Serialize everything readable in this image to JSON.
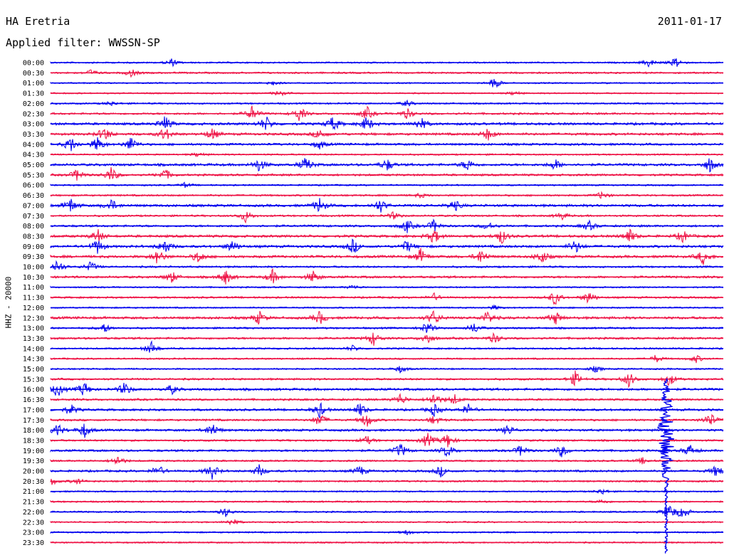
{
  "header": {
    "station": "HA Eretria",
    "date": "2011-01-17",
    "filter": "Applied filter: WWSSN-SP"
  },
  "channel_label": "HHZ - 20000",
  "colors": {
    "blue": "#0000ee",
    "red": "#ee1144"
  },
  "chart_data": {
    "type": "line",
    "title": "HA Eretria",
    "subtitle": "Applied filter: WWSSN-SP",
    "ylabel": "HHZ - 20000",
    "row_interval_minutes": 30,
    "series": [
      {
        "label": "00:00",
        "color": "blue",
        "activity": 0.15,
        "events": [
          [
            0.18,
            0.5
          ],
          [
            0.89,
            0.6
          ],
          [
            0.93,
            0.7
          ]
        ]
      },
      {
        "label": "00:30",
        "color": "red",
        "activity": 0.25,
        "events": [
          [
            0.06,
            0.4
          ],
          [
            0.12,
            0.5
          ]
        ]
      },
      {
        "label": "01:00",
        "color": "blue",
        "activity": 0.12,
        "events": [
          [
            0.66,
            0.7
          ],
          [
            0.33,
            0.3
          ]
        ]
      },
      {
        "label": "01:30",
        "color": "red",
        "activity": 0.12,
        "events": [
          [
            0.34,
            0.4
          ],
          [
            0.69,
            0.3
          ]
        ]
      },
      {
        "label": "02:00",
        "color": "blue",
        "activity": 0.2,
        "events": [
          [
            0.09,
            0.3
          ],
          [
            0.53,
            0.4
          ]
        ]
      },
      {
        "label": "02:30",
        "color": "red",
        "activity": 0.35,
        "events": [
          [
            0.3,
            1.0
          ],
          [
            0.37,
            1.0
          ],
          [
            0.47,
            0.9
          ],
          [
            0.53,
            0.7
          ]
        ]
      },
      {
        "label": "03:00",
        "color": "blue",
        "activity": 0.55,
        "events": [
          [
            0.17,
            1.0
          ],
          [
            0.32,
            1.0
          ],
          [
            0.42,
            1.0
          ],
          [
            0.47,
            1.0
          ],
          [
            0.55,
            0.9
          ]
        ]
      },
      {
        "label": "03:30",
        "color": "red",
        "activity": 0.5,
        "events": [
          [
            0.08,
            1.0
          ],
          [
            0.17,
            1.0
          ],
          [
            0.24,
            0.8
          ],
          [
            0.4,
            0.7
          ],
          [
            0.65,
            0.8
          ]
        ]
      },
      {
        "label": "04:00",
        "color": "blue",
        "activity": 0.45,
        "events": [
          [
            0.03,
            1.0
          ],
          [
            0.07,
            1.0
          ],
          [
            0.12,
            1.0
          ],
          [
            0.4,
            0.6
          ]
        ]
      },
      {
        "label": "04:30",
        "color": "red",
        "activity": 0.18,
        "events": [
          [
            0.22,
            0.3
          ]
        ]
      },
      {
        "label": "05:00",
        "color": "blue",
        "activity": 0.55,
        "events": [
          [
            0.31,
            0.9
          ],
          [
            0.38,
            1.0
          ],
          [
            0.5,
            0.8
          ],
          [
            0.62,
            0.8
          ],
          [
            0.75,
            0.7
          ],
          [
            0.98,
            1.0
          ]
        ]
      },
      {
        "label": "05:30",
        "color": "red",
        "activity": 0.4,
        "events": [
          [
            0.04,
            0.8
          ],
          [
            0.09,
            1.0
          ],
          [
            0.17,
            0.8
          ]
        ]
      },
      {
        "label": "06:00",
        "color": "blue",
        "activity": 0.18,
        "events": [
          [
            0.2,
            0.3
          ]
        ]
      },
      {
        "label": "06:30",
        "color": "red",
        "activity": 0.25,
        "events": [
          [
            0.82,
            0.5
          ],
          [
            0.55,
            0.3
          ]
        ]
      },
      {
        "label": "07:00",
        "color": "blue",
        "activity": 0.55,
        "events": [
          [
            0.03,
            1.0
          ],
          [
            0.09,
            0.8
          ],
          [
            0.4,
            1.0
          ],
          [
            0.49,
            0.9
          ],
          [
            0.6,
            0.8
          ]
        ]
      },
      {
        "label": "07:30",
        "color": "red",
        "activity": 0.3,
        "events": [
          [
            0.29,
            0.8
          ],
          [
            0.51,
            0.5
          ],
          [
            0.76,
            0.5
          ]
        ]
      },
      {
        "label": "08:00",
        "color": "blue",
        "activity": 0.4,
        "events": [
          [
            0.53,
            0.9
          ],
          [
            0.57,
            0.8
          ],
          [
            0.65,
            0.6
          ],
          [
            0.8,
            0.7
          ]
        ]
      },
      {
        "label": "08:30",
        "color": "red",
        "activity": 0.55,
        "events": [
          [
            0.07,
            0.9
          ],
          [
            0.57,
            1.0
          ],
          [
            0.67,
            1.0
          ],
          [
            0.86,
            1.0
          ],
          [
            0.94,
            0.8
          ]
        ]
      },
      {
        "label": "09:00",
        "color": "blue",
        "activity": 0.55,
        "events": [
          [
            0.07,
            1.0
          ],
          [
            0.17,
            1.0
          ],
          [
            0.27,
            0.8
          ],
          [
            0.45,
            1.0
          ],
          [
            0.53,
            0.8
          ],
          [
            0.78,
            0.9
          ]
        ]
      },
      {
        "label": "09:30",
        "color": "red",
        "activity": 0.55,
        "events": [
          [
            0.16,
            1.0
          ],
          [
            0.22,
            0.8
          ],
          [
            0.55,
            1.0
          ],
          [
            0.64,
            1.0
          ],
          [
            0.73,
            0.9
          ],
          [
            0.97,
            1.0
          ]
        ]
      },
      {
        "label": "10:00",
        "color": "blue",
        "activity": 0.3,
        "events": [
          [
            0.01,
            1.0
          ],
          [
            0.06,
            0.7
          ]
        ]
      },
      {
        "label": "10:30",
        "color": "red",
        "activity": 0.45,
        "events": [
          [
            0.18,
            0.8
          ],
          [
            0.26,
            1.0
          ],
          [
            0.33,
            0.9
          ],
          [
            0.39,
            0.8
          ]
        ]
      },
      {
        "label": "11:00",
        "color": "blue",
        "activity": 0.15,
        "events": [
          [
            0.45,
            0.3
          ]
        ]
      },
      {
        "label": "11:30",
        "color": "red",
        "activity": 0.3,
        "events": [
          [
            0.57,
            0.5
          ],
          [
            0.75,
            1.0
          ],
          [
            0.8,
            0.9
          ]
        ]
      },
      {
        "label": "12:00",
        "color": "blue",
        "activity": 0.15,
        "events": [
          [
            0.66,
            0.3
          ]
        ]
      },
      {
        "label": "12:30",
        "color": "red",
        "activity": 0.55,
        "events": [
          [
            0.31,
            0.9
          ],
          [
            0.4,
            0.9
          ],
          [
            0.57,
            1.0
          ],
          [
            0.65,
            0.9
          ],
          [
            0.75,
            0.9
          ]
        ]
      },
      {
        "label": "13:00",
        "color": "blue",
        "activity": 0.3,
        "events": [
          [
            0.08,
            0.6
          ],
          [
            0.56,
            0.9
          ],
          [
            0.63,
            0.7
          ]
        ]
      },
      {
        "label": "13:30",
        "color": "red",
        "activity": 0.4,
        "events": [
          [
            0.48,
            0.9
          ],
          [
            0.56,
            0.8
          ],
          [
            0.66,
            0.7
          ]
        ]
      },
      {
        "label": "14:00",
        "color": "blue",
        "activity": 0.25,
        "events": [
          [
            0.15,
            0.9
          ],
          [
            0.45,
            0.4
          ]
        ]
      },
      {
        "label": "14:30",
        "color": "red",
        "activity": 0.2,
        "events": [
          [
            0.9,
            0.5
          ],
          [
            0.96,
            0.5
          ]
        ]
      },
      {
        "label": "15:00",
        "color": "blue",
        "activity": 0.18,
        "events": [
          [
            0.52,
            0.5
          ],
          [
            0.81,
            0.4
          ]
        ]
      },
      {
        "label": "15:30",
        "color": "red",
        "activity": 0.35,
        "events": [
          [
            0.78,
            1.0
          ],
          [
            0.86,
            1.0
          ],
          [
            0.92,
            0.9
          ]
        ]
      },
      {
        "label": "16:00",
        "color": "blue",
        "activity": 0.5,
        "events": [
          [
            0.01,
            1.0
          ],
          [
            0.05,
            1.0
          ],
          [
            0.11,
            0.9
          ],
          [
            0.18,
            0.6
          ]
        ]
      },
      {
        "label": "16:30",
        "color": "red",
        "activity": 0.35,
        "events": [
          [
            0.52,
            0.8
          ],
          [
            0.57,
            0.9
          ],
          [
            0.6,
            0.7
          ]
        ]
      },
      {
        "label": "17:00",
        "color": "blue",
        "activity": 0.45,
        "events": [
          [
            0.03,
            0.7
          ],
          [
            0.4,
            1.0
          ],
          [
            0.46,
            0.9
          ],
          [
            0.57,
            0.8
          ],
          [
            0.62,
            0.8
          ]
        ]
      },
      {
        "label": "17:30",
        "color": "red",
        "activity": 0.35,
        "events": [
          [
            0.4,
            0.9
          ],
          [
            0.47,
            1.0
          ],
          [
            0.57,
            0.6
          ],
          [
            0.98,
            1.0
          ]
        ]
      },
      {
        "label": "18:00",
        "color": "blue",
        "activity": 0.45,
        "events": [
          [
            0.01,
            0.9
          ],
          [
            0.05,
            1.0
          ],
          [
            0.24,
            1.0
          ],
          [
            0.68,
            0.7
          ]
        ]
      },
      {
        "label": "18:30",
        "color": "red",
        "activity": 0.3,
        "events": [
          [
            0.56,
            1.0
          ],
          [
            0.59,
            1.0
          ],
          [
            0.47,
            0.6
          ]
        ]
      },
      {
        "label": "19:00",
        "color": "blue",
        "activity": 0.4,
        "events": [
          [
            0.52,
            1.0
          ],
          [
            0.59,
            0.9
          ],
          [
            0.7,
            0.8
          ],
          [
            0.76,
            0.8
          ],
          [
            0.95,
            0.8
          ]
        ]
      },
      {
        "label": "19:30",
        "color": "red",
        "activity": 0.25,
        "events": [
          [
            0.1,
            0.7
          ],
          [
            0.88,
            0.4
          ]
        ]
      },
      {
        "label": "20:00",
        "color": "blue",
        "activity": 0.4,
        "events": [
          [
            0.16,
            0.8
          ],
          [
            0.24,
            1.0
          ],
          [
            0.31,
            0.8
          ],
          [
            0.46,
            0.7
          ],
          [
            0.58,
            0.7
          ],
          [
            0.99,
            0.8
          ]
        ]
      },
      {
        "label": "20:30",
        "color": "red",
        "activity": 0.25,
        "events": [
          [
            0.0,
            0.6
          ],
          [
            0.04,
            0.4
          ]
        ]
      },
      {
        "label": "21:00",
        "color": "blue",
        "activity": 0.15,
        "events": [
          [
            0.82,
            0.4
          ]
        ]
      },
      {
        "label": "21:30",
        "color": "red",
        "activity": 0.2,
        "events": [
          [
            0.82,
            0.3
          ]
        ]
      },
      {
        "label": "22:00",
        "color": "blue",
        "activity": 0.2,
        "events": [
          [
            0.26,
            0.6
          ],
          [
            0.92,
            1.0
          ],
          [
            0.94,
            0.9
          ]
        ]
      },
      {
        "label": "22:30",
        "color": "red",
        "activity": 0.15,
        "events": [
          [
            0.27,
            0.5
          ]
        ]
      },
      {
        "label": "23:00",
        "color": "blue",
        "activity": 0.15,
        "events": [
          [
            0.53,
            0.3
          ]
        ]
      },
      {
        "label": "23:30",
        "color": "red",
        "activity": 0.15,
        "events": []
      }
    ],
    "annotations": [
      {
        "type": "earthquake",
        "start_row": "19:00",
        "x": 0.915,
        "peak_row": "20:00"
      }
    ]
  }
}
